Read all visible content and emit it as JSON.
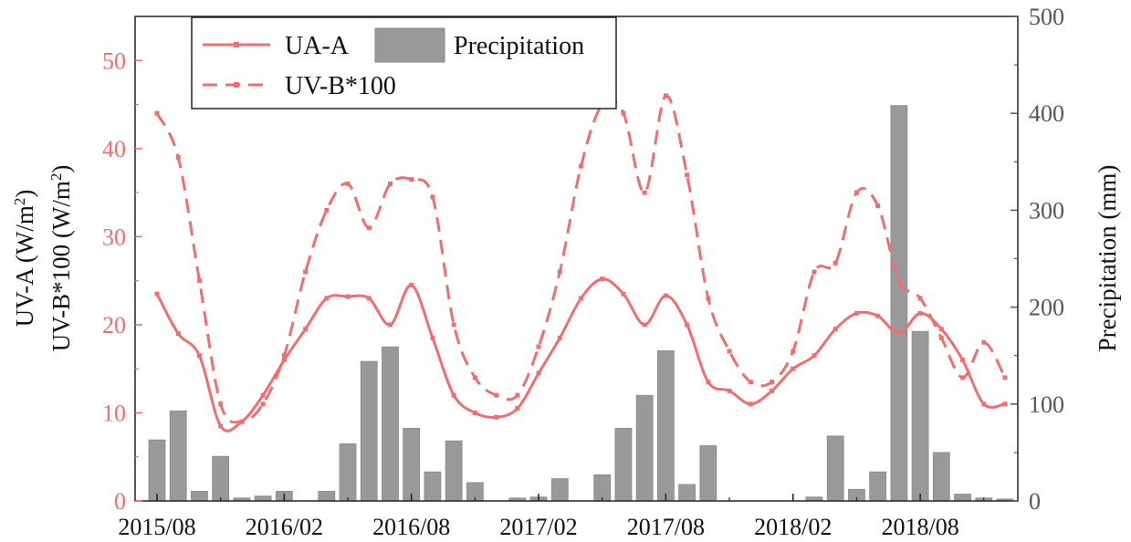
{
  "chart_data": {
    "type": "line+bar",
    "x_tick_labels": [
      "2015/08",
      "2016/02",
      "2016/08",
      "2017/02",
      "2017/08",
      "2018/02",
      "2018/08"
    ],
    "months": [
      "2015/08",
      "2015/09",
      "2015/10",
      "2015/11",
      "2015/12",
      "2016/01",
      "2016/02",
      "2016/03",
      "2016/04",
      "2016/05",
      "2016/06",
      "2016/07",
      "2016/08",
      "2016/09",
      "2016/10",
      "2016/11",
      "2016/12",
      "2017/01",
      "2017/02",
      "2017/03",
      "2017/04",
      "2017/05",
      "2017/06",
      "2017/07",
      "2017/08",
      "2017/09",
      "2017/10",
      "2017/11",
      "2017/12",
      "2018/01",
      "2018/02",
      "2018/03",
      "2018/04",
      "2018/05",
      "2018/06",
      "2018/07",
      "2018/08",
      "2018/09",
      "2018/10",
      "2018/11",
      "2018/12"
    ],
    "left_axis": {
      "label_line1": "UV-A (W/m",
      "label_line1_sup": "2",
      "label_line1_end": ")",
      "label_line2": "UV-B*100 (W/m",
      "label_line2_sup": "2",
      "label_line2_end": ")",
      "ticks": [
        "0",
        "10",
        "20",
        "30",
        "40",
        "50"
      ],
      "range": [
        0,
        55
      ],
      "color": "#f26d6d"
    },
    "right_axis": {
      "label": "Precipitation (mm)",
      "ticks": [
        "0",
        "100",
        "200",
        "300",
        "400",
        "500"
      ],
      "range": [
        0,
        500
      ],
      "color": "#555555"
    },
    "series": [
      {
        "name": "UA-A",
        "kind": "line",
        "axis": "left",
        "style": "solid",
        "color": "#f26d6d",
        "values": [
          23.5,
          19.0,
          16.5,
          8.5,
          9.0,
          12.0,
          16.0,
          19.5,
          23.0,
          23.2,
          23.0,
          20.0,
          24.5,
          18.5,
          12.0,
          10.0,
          9.5,
          10.5,
          14.5,
          18.5,
          23.0,
          25.2,
          23.5,
          20.0,
          23.3,
          20.0,
          13.5,
          12.5,
          11.0,
          12.5,
          15.0,
          16.5,
          19.5,
          21.3,
          21.0,
          19.0,
          21.3,
          19.5,
          16.0,
          11.0,
          11.0
        ]
      },
      {
        "name": "UV-B*100",
        "kind": "line",
        "axis": "left",
        "style": "dashed",
        "color": "#f26d6d",
        "values": [
          44.0,
          39.0,
          25.0,
          11.0,
          9.0,
          11.0,
          16.5,
          26.0,
          33.0,
          36.0,
          31.0,
          36.0,
          36.5,
          34.5,
          20.0,
          14.0,
          12.0,
          12.0,
          17.5,
          26.0,
          38.0,
          45.0,
          44.0,
          35.0,
          46.0,
          37.0,
          23.0,
          17.0,
          13.5,
          13.5,
          17.0,
          26.0,
          27.0,
          35.0,
          33.5,
          25.0,
          23.0,
          18.5,
          14.0,
          18.0,
          14.0
        ]
      },
      {
        "name": "Precipitation",
        "kind": "bar",
        "axis": "right",
        "color": "#999999",
        "values": [
          63,
          93,
          10,
          46,
          3,
          5,
          10,
          0,
          10,
          59,
          144,
          159,
          75,
          30,
          62,
          19,
          0,
          3,
          4,
          23,
          0,
          27,
          75,
          109,
          155,
          17,
          57,
          0,
          0,
          0,
          0,
          4,
          67,
          12,
          30,
          408,
          175,
          50,
          7,
          3,
          2
        ]
      }
    ],
    "legend": {
      "placement": "top-left",
      "items": [
        {
          "label": "UA-A",
          "type": "line-solid"
        },
        {
          "label": "Precipitation",
          "type": "bar"
        },
        {
          "label": "UV-B*100",
          "type": "line-dashed"
        }
      ]
    },
    "grid": false
  }
}
